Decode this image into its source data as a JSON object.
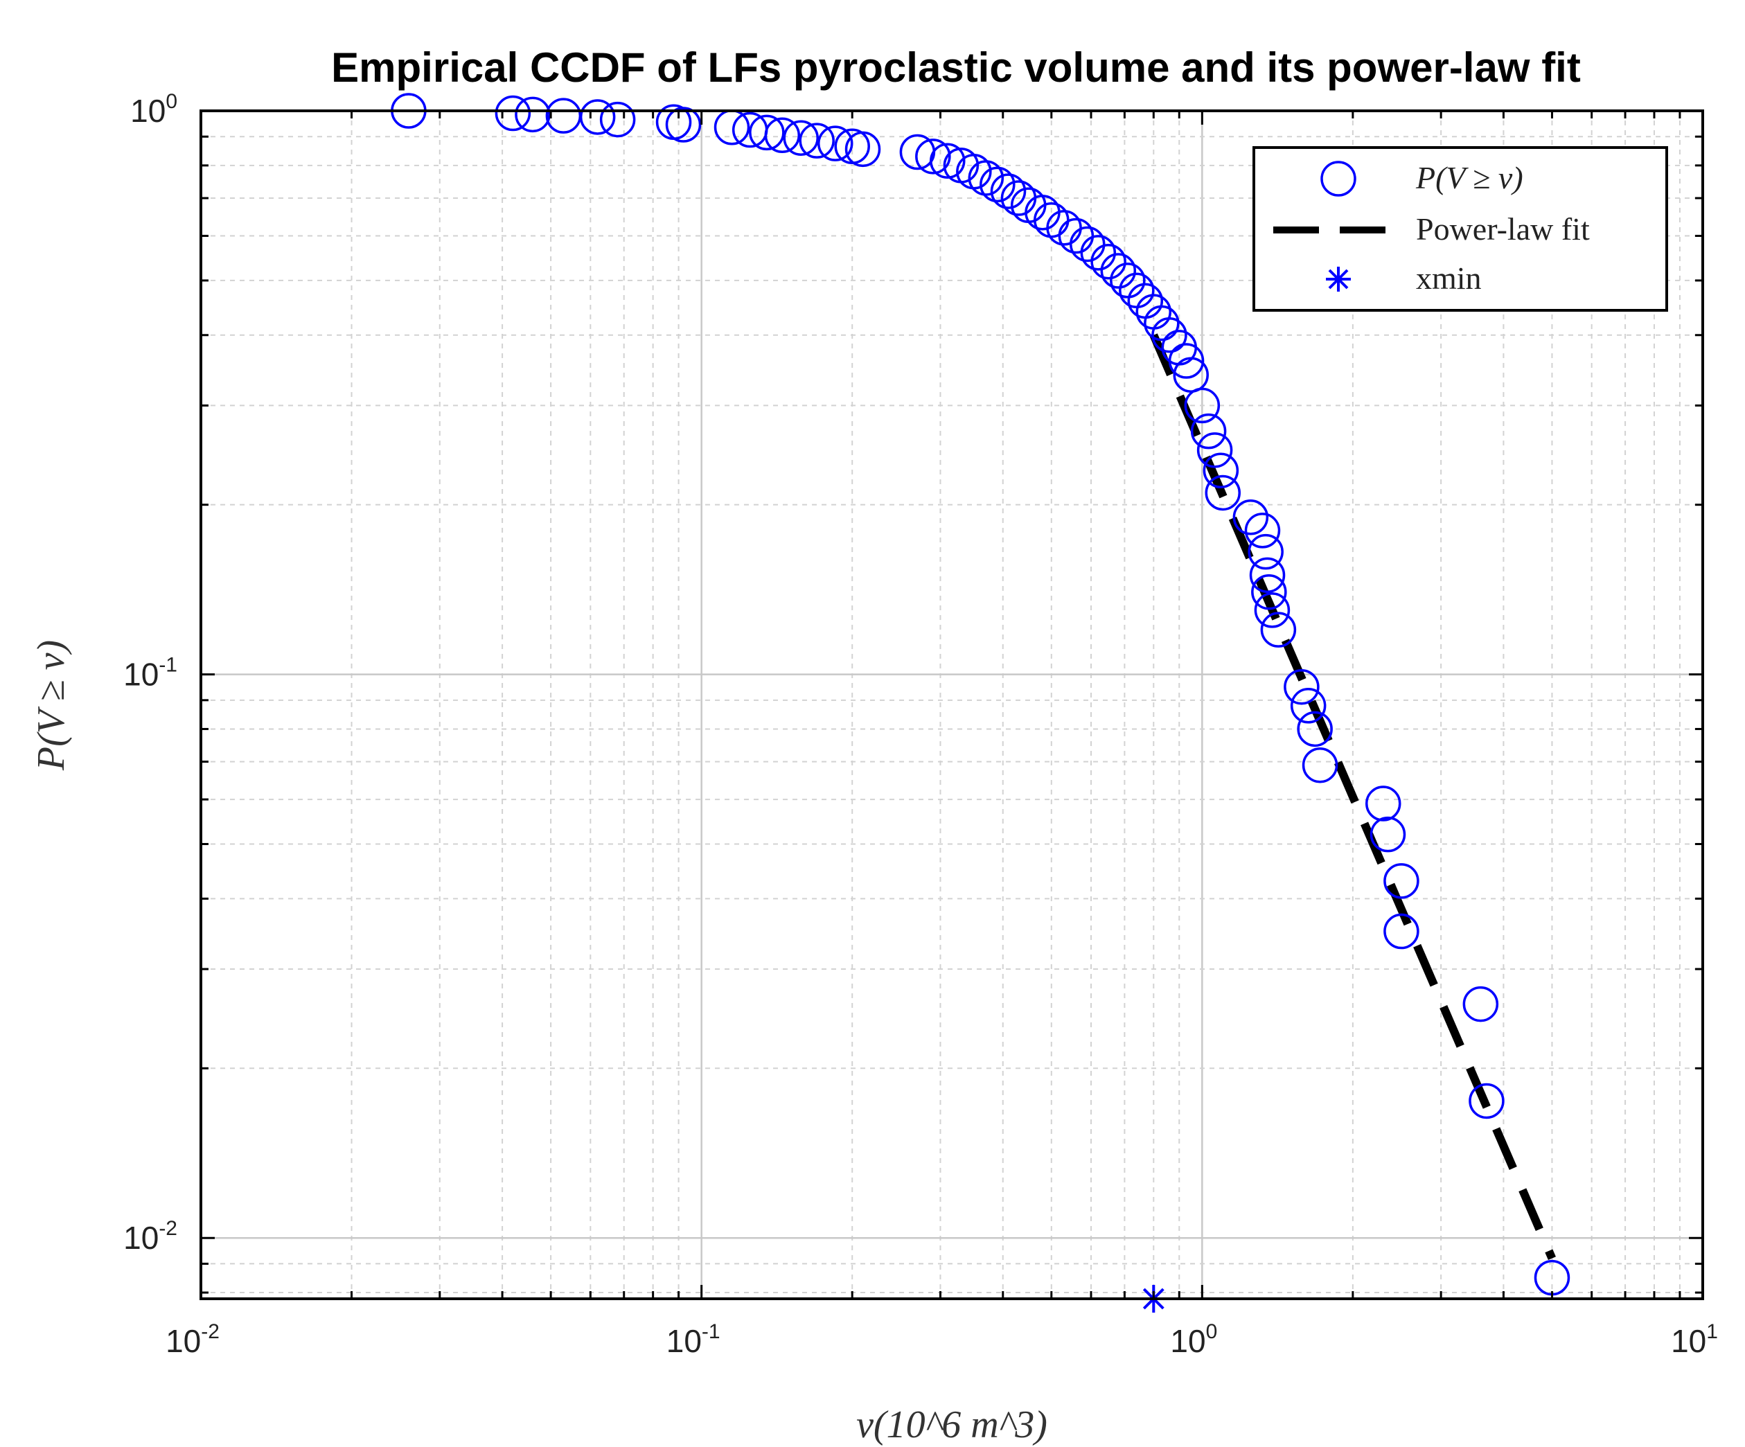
{
  "chart_data": {
    "type": "scatter",
    "title": "Empirical CCDF of LFs pyroclastic volume and its power-law fit",
    "xlabel": "v(10^6 m^3)",
    "ylabel": "P(V ≥ v)",
    "xscale": "log",
    "yscale": "log",
    "xlim": [
      0.01,
      10
    ],
    "ylim": [
      0.0078,
      1
    ],
    "grid": true,
    "x_ticks": [
      {
        "base": "10",
        "exp": "-2"
      },
      {
        "base": "10",
        "exp": "-1"
      },
      {
        "base": "10",
        "exp": "0"
      },
      {
        "base": "10",
        "exp": "1"
      }
    ],
    "y_ticks": [
      {
        "base": "10",
        "exp": "-2",
        "value": 0.01
      },
      {
        "base": "10",
        "exp": "-1",
        "value": 0.1
      },
      {
        "base": "10",
        "exp": "0",
        "value": 1
      }
    ],
    "legend": {
      "position": "top-right",
      "entries": [
        {
          "label": "P(V ≥ v)",
          "marker": "circle"
        },
        {
          "label": "Power-law fit",
          "marker": "dashed-line"
        },
        {
          "label": "xmin",
          "marker": "asterisk"
        }
      ]
    },
    "series": [
      {
        "name": "P(V ≥ v)",
        "marker": "circle",
        "color": "#0000ff",
        "x": [
          0.026,
          0.042,
          0.046,
          0.053,
          0.062,
          0.068,
          0.088,
          0.092,
          0.115,
          0.125,
          0.135,
          0.145,
          0.158,
          0.17,
          0.185,
          0.2,
          0.21,
          0.27,
          0.29,
          0.31,
          0.33,
          0.35,
          0.37,
          0.39,
          0.41,
          0.43,
          0.45,
          0.48,
          0.5,
          0.53,
          0.56,
          0.59,
          0.62,
          0.65,
          0.68,
          0.71,
          0.74,
          0.77,
          0.8,
          0.83,
          0.86,
          0.9,
          0.93,
          0.95,
          1.0,
          1.03,
          1.06,
          1.09,
          1.1,
          1.25,
          1.32,
          1.34,
          1.35,
          1.36,
          1.38,
          1.42,
          1.58,
          1.63,
          1.68,
          1.72,
          2.3,
          2.35,
          2.5,
          2.5,
          3.6,
          3.7,
          5.0
        ],
        "y": [
          1.0,
          0.99,
          0.985,
          0.98,
          0.975,
          0.965,
          0.955,
          0.945,
          0.935,
          0.925,
          0.915,
          0.905,
          0.895,
          0.885,
          0.875,
          0.865,
          0.855,
          0.845,
          0.83,
          0.815,
          0.8,
          0.78,
          0.76,
          0.74,
          0.72,
          0.7,
          0.68,
          0.66,
          0.64,
          0.62,
          0.6,
          0.58,
          0.56,
          0.54,
          0.52,
          0.5,
          0.48,
          0.46,
          0.44,
          0.42,
          0.4,
          0.38,
          0.36,
          0.34,
          0.3,
          0.27,
          0.25,
          0.23,
          0.21,
          0.19,
          0.18,
          0.165,
          0.15,
          0.14,
          0.13,
          0.12,
          0.095,
          0.088,
          0.08,
          0.069,
          0.059,
          0.052,
          0.043,
          0.035,
          0.026,
          0.0175,
          0.0085
        ]
      },
      {
        "name": "Power-law fit",
        "style": "dashed",
        "color": "#000000",
        "x": [
          0.8,
          5.0
        ],
        "y": [
          0.4,
          0.0092
        ]
      },
      {
        "name": "xmin",
        "marker": "asterisk",
        "color": "#0000ff",
        "x": [
          0.8
        ],
        "y": [
          0.0078
        ]
      }
    ]
  }
}
